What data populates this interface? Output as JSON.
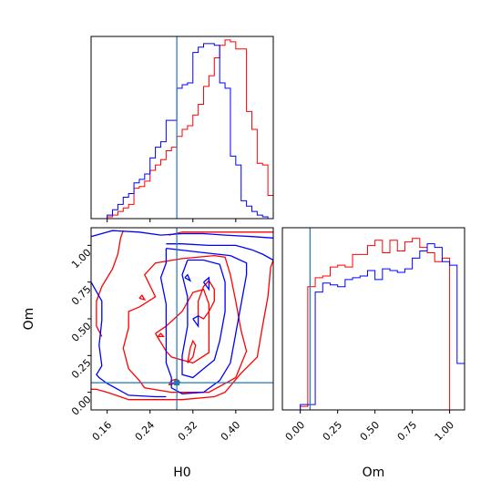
{
  "chart_data": {
    "type": "corner",
    "parameters": [
      "H0",
      "Om"
    ],
    "truths": {
      "H0": 0.29,
      "Om": 0.065
    },
    "truth_color": "#1f77b4",
    "series": [
      {
        "color": "#ff0000"
      },
      {
        "color": "#0000ff"
      }
    ],
    "hist_H0": {
      "bin_edges": [
        0.13,
        0.14,
        0.15,
        0.16,
        0.17,
        0.18,
        0.19,
        0.2,
        0.21,
        0.22,
        0.23,
        0.24,
        0.25,
        0.26,
        0.27,
        0.28,
        0.29,
        0.3,
        0.31,
        0.32,
        0.33,
        0.34,
        0.35,
        0.36,
        0.37,
        0.38,
        0.39,
        0.4,
        0.41,
        0.42,
        0.43,
        0.44,
        0.45,
        0.46,
        0.47
      ],
      "counts": [
        [
          0,
          0,
          0,
          0.01,
          0.02,
          0.04,
          0.06,
          0.08,
          0.17,
          0.18,
          0.21,
          0.27,
          0.3,
          0.33,
          0.38,
          0.4,
          0.46,
          0.5,
          0.52,
          0.58,
          0.64,
          0.74,
          0.8,
          0.9,
          0.97,
          1.0,
          0.99,
          0.95,
          0.95,
          0.6,
          0.5,
          0.31,
          0.3,
          0.13
        ],
        [
          0,
          0,
          0,
          0.02,
          0.05,
          0.08,
          0.12,
          0.14,
          0.2,
          0.22,
          0.25,
          0.34,
          0.4,
          0.43,
          0.55,
          0.55,
          0.73,
          0.75,
          0.76,
          0.93,
          0.96,
          0.98,
          0.98,
          0.97,
          0.76,
          0.73,
          0.35,
          0.3,
          0.1,
          0.07,
          0.04,
          0.02,
          0.01,
          0
        ]
      ],
      "xlim": [
        0.13,
        0.47
      ],
      "xticks": [
        "0.16",
        "0.24",
        "0.32",
        "0.40"
      ],
      "xtick_values": [
        0.16,
        0.24,
        0.32,
        0.4
      ]
    },
    "hist_Om": {
      "bin_edges": [
        -0.1,
        -0.05,
        0.0,
        0.05,
        0.1,
        0.15,
        0.2,
        0.25,
        0.3,
        0.35,
        0.4,
        0.45,
        0.5,
        0.55,
        0.6,
        0.65,
        0.7,
        0.75,
        0.8,
        0.85,
        0.9,
        0.95,
        1.0,
        1.05,
        1.1
      ],
      "counts": [
        [
          0,
          0,
          0.02,
          0.69,
          0.74,
          0.75,
          0.8,
          0.81,
          0.8,
          0.87,
          0.87,
          0.92,
          0.95,
          0.88,
          0.95,
          0.89,
          0.94,
          0.96,
          0.91,
          0.88,
          0.83,
          0.85,
          0,
          0
        ],
        [
          0,
          0,
          0.03,
          0.03,
          0.66,
          0.71,
          0.7,
          0.69,
          0.73,
          0.74,
          0.75,
          0.78,
          0.73,
          0.79,
          0.78,
          0.77,
          0.79,
          0.85,
          0.89,
          0.93,
          0.91,
          0.83,
          0.81,
          0.26,
          0.03
        ]
      ],
      "xlim": [
        -0.12,
        1.1
      ],
      "xticks": [
        "0.00",
        "0.25",
        "0.50",
        "0.75",
        "1.00"
      ],
      "xtick_values": [
        0.0,
        0.25,
        0.5,
        0.75,
        1.0
      ]
    },
    "joint": {
      "xlim": [
        0.13,
        0.47
      ],
      "ylim": [
        -0.12,
        1.12
      ],
      "yticks": [
        "0.00",
        "0.25",
        "0.50",
        "0.75",
        "1.00"
      ],
      "ytick_values": [
        0.0,
        0.25,
        0.5,
        0.75,
        1.0
      ],
      "contours": [
        {
          "series": 0,
          "lines": [
            [
              [
                0.275,
                1.07
              ],
              [
                0.3,
                1.09
              ],
              [
                0.36,
                1.09
              ],
              [
                0.42,
                1.09
              ],
              [
                0.47,
                1.09
              ]
            ],
            [
              [
                0.15,
                0.38
              ],
              [
                0.14,
                0.45
              ],
              [
                0.14,
                0.55
              ],
              [
                0.14,
                0.62
              ],
              [
                0.15,
                0.72
              ],
              [
                0.17,
                0.84
              ],
              [
                0.18,
                0.94
              ],
              [
                0.185,
                1.05
              ],
              [
                0.19,
                1.1
              ]
            ],
            [
              [
                0.12,
                0.02
              ],
              [
                0.14,
                0.02
              ],
              [
                0.16,
                0.0
              ],
              [
                0.2,
                -0.05
              ],
              [
                0.3,
                -0.05
              ],
              [
                0.36,
                -0.03
              ],
              [
                0.38,
                0.0
              ],
              [
                0.41,
                0.13
              ],
              [
                0.44,
                0.24
              ],
              [
                0.45,
                0.45
              ],
              [
                0.46,
                0.65
              ],
              [
                0.465,
                0.85
              ],
              [
                0.47,
                0.9
              ]
            ],
            [
              [
                0.2,
                0.16
              ],
              [
                0.19,
                0.3
              ],
              [
                0.2,
                0.44
              ],
              [
                0.2,
                0.55
              ],
              [
                0.22,
                0.58
              ],
              [
                0.25,
                0.65
              ],
              [
                0.23,
                0.8
              ],
              [
                0.25,
                0.88
              ],
              [
                0.3,
                0.91
              ],
              [
                0.36,
                0.93
              ],
              [
                0.38,
                0.92
              ],
              [
                0.39,
                0.8
              ],
              [
                0.4,
                0.62
              ],
              [
                0.41,
                0.42
              ],
              [
                0.42,
                0.28
              ],
              [
                0.4,
                0.1
              ],
              [
                0.35,
                0.0
              ],
              [
                0.28,
                0.0
              ],
              [
                0.23,
                0.03
              ],
              [
                0.22,
                0.08
              ],
              [
                0.21,
                0.12
              ],
              [
                0.2,
                0.16
              ]
            ],
            [
              [
                0.25,
                0.4
              ],
              [
                0.27,
                0.28
              ],
              [
                0.28,
                0.24
              ],
              [
                0.3,
                0.22
              ],
              [
                0.32,
                0.2
              ],
              [
                0.35,
                0.27
              ],
              [
                0.35,
                0.45
              ],
              [
                0.35,
                0.6
              ],
              [
                0.34,
                0.7
              ],
              [
                0.32,
                0.68
              ],
              [
                0.3,
                0.55
              ],
              [
                0.27,
                0.45
              ],
              [
                0.25,
                0.4
              ]
            ],
            [
              [
                0.33,
                0.52
              ],
              [
                0.34,
                0.5
              ],
              [
                0.35,
                0.55
              ],
              [
                0.36,
                0.62
              ],
              [
                0.36,
                0.7
              ],
              [
                0.35,
                0.76
              ],
              [
                0.34,
                0.72
              ],
              [
                0.33,
                0.62
              ],
              [
                0.33,
                0.52
              ]
            ],
            [
              [
                0.31,
                0.2
              ],
              [
                0.315,
                0.3
              ],
              [
                0.32,
                0.35
              ],
              [
                0.325,
                0.32
              ],
              [
                0.32,
                0.24
              ],
              [
                0.31,
                0.2
              ]
            ],
            [
              [
                0.22,
                0.64
              ],
              [
                0.225,
                0.66
              ],
              [
                0.23,
                0.63
              ],
              [
                0.22,
                0.64
              ]
            ],
            [
              [
                0.255,
                0.38
              ],
              [
                0.26,
                0.4
              ],
              [
                0.265,
                0.38
              ],
              [
                0.255,
                0.38
              ]
            ],
            [
              [
                0.275,
                0.05
              ],
              [
                0.28,
                0.08
              ],
              [
                0.29,
                0.09
              ],
              [
                0.295,
                0.07
              ],
              [
                0.275,
                0.05
              ]
            ]
          ]
        },
        {
          "series": 1,
          "lines": [
            [
              [
                0.12,
                1.05
              ],
              [
                0.17,
                1.1
              ],
              [
                0.22,
                1.09
              ],
              [
                0.26,
                1.07
              ],
              [
                0.3,
                1.08
              ],
              [
                0.34,
                1.08
              ],
              [
                0.38,
                1.07
              ],
              [
                0.43,
                1.06
              ],
              [
                0.47,
                1.05
              ]
            ],
            [
              [
                0.13,
                0.75
              ],
              [
                0.15,
                0.62
              ],
              [
                0.15,
                0.49
              ],
              [
                0.145,
                0.32
              ],
              [
                0.15,
                0.18
              ],
              [
                0.14,
                0.12
              ],
              [
                0.145,
                0.1
              ],
              [
                0.16,
                0.06
              ],
              [
                0.18,
                0.02
              ],
              [
                0.2,
                -0.02
              ],
              [
                0.25,
                -0.03
              ],
              [
                0.27,
                -0.03
              ]
            ],
            [
              [
                0.27,
                1.01
              ],
              [
                0.3,
                1.01
              ],
              [
                0.35,
                1.0
              ],
              [
                0.4,
                1.0
              ],
              [
                0.43,
                0.97
              ],
              [
                0.45,
                0.94
              ],
              [
                0.47,
                0.9
              ]
            ],
            [
              [
                0.27,
                0.98
              ],
              [
                0.34,
                0.95
              ],
              [
                0.39,
                0.93
              ],
              [
                0.42,
                0.88
              ],
              [
                0.42,
                0.8
              ],
              [
                0.41,
                0.6
              ],
              [
                0.4,
                0.4
              ],
              [
                0.39,
                0.2
              ],
              [
                0.37,
                0.08
              ],
              [
                0.34,
                0.0
              ],
              [
                0.3,
                -0.01
              ],
              [
                0.28,
                0.03
              ],
              [
                0.28,
                0.1
              ],
              [
                0.27,
                0.2
              ],
              [
                0.27,
                0.4
              ],
              [
                0.27,
                0.6
              ],
              [
                0.26,
                0.78
              ],
              [
                0.27,
                0.88
              ],
              [
                0.27,
                0.98
              ]
            ],
            [
              [
                0.31,
                0.9
              ],
              [
                0.34,
                0.9
              ],
              [
                0.37,
                0.87
              ],
              [
                0.38,
                0.75
              ],
              [
                0.38,
                0.55
              ],
              [
                0.37,
                0.35
              ],
              [
                0.36,
                0.22
              ],
              [
                0.34,
                0.16
              ],
              [
                0.32,
                0.1
              ],
              [
                0.3,
                0.12
              ],
              [
                0.3,
                0.25
              ],
              [
                0.31,
                0.45
              ],
              [
                0.31,
                0.65
              ],
              [
                0.3,
                0.8
              ],
              [
                0.31,
                0.9
              ]
            ],
            [
              [
                0.305,
                0.78
              ],
              [
                0.31,
                0.8
              ],
              [
                0.315,
                0.76
              ],
              [
                0.305,
                0.78
              ]
            ],
            [
              [
                0.32,
                0.5
              ],
              [
                0.33,
                0.52
              ],
              [
                0.33,
                0.45
              ],
              [
                0.32,
                0.5
              ]
            ],
            [
              [
                0.34,
                0.75
              ],
              [
                0.35,
                0.78
              ],
              [
                0.35,
                0.7
              ],
              [
                0.34,
                0.75
              ]
            ]
          ]
        }
      ]
    }
  }
}
